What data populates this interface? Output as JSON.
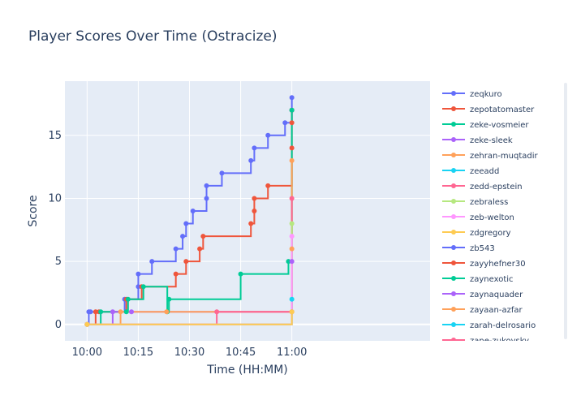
{
  "chart_data": {
    "type": "line",
    "title": "Player Scores Over Time (Ostracize)",
    "xlabel": "Time (HH:MM)",
    "ylabel": "Score",
    "x_unit": "minutes after 10:00",
    "xlim": [
      -6.5,
      100.5
    ],
    "ylim": [
      -1.3,
      19.3
    ],
    "x_ticks": [
      {
        "value": 0,
        "label": "10:00"
      },
      {
        "value": 15,
        "label": "10:15"
      },
      {
        "value": 30,
        "label": "10:30"
      },
      {
        "value": 45,
        "label": "10:45"
      },
      {
        "value": 60,
        "label": "11:00"
      }
    ],
    "y_ticks": [
      0,
      5,
      10,
      15
    ],
    "line_shape": "step-after",
    "grid": true,
    "legend_position": "right",
    "plot_background": "#e5ecf6",
    "series": [
      {
        "name": "zeqkuro",
        "color": "#636efa",
        "x": [
          0,
          0.5,
          1,
          11,
          15,
          15,
          19,
          26,
          28,
          29,
          31,
          35,
          35,
          39.5,
          48,
          49,
          53,
          58,
          60,
          60
        ],
        "y": [
          0,
          1,
          1,
          2,
          3,
          4,
          5,
          6,
          7,
          8,
          9,
          10,
          11,
          12,
          13,
          14,
          15,
          16,
          17,
          18
        ]
      },
      {
        "name": "zepotatomaster",
        "color": "#ef553b",
        "x": [
          0,
          2.5,
          3.5,
          11.5,
          16,
          26,
          29,
          33,
          34,
          48,
          49,
          49,
          53,
          60,
          60,
          60
        ],
        "y": [
          0,
          1,
          1,
          2,
          3,
          4,
          5,
          6,
          7,
          8,
          9,
          10,
          11,
          14,
          16,
          17
        ]
      },
      {
        "name": "zeke-vosmeier",
        "color": "#00cc96",
        "x": [
          0,
          4,
          11.5,
          12,
          16.5,
          23.5,
          24,
          45,
          59,
          60
        ],
        "y": [
          0,
          1,
          1,
          2,
          3,
          1,
          2,
          4,
          5,
          17
        ]
      },
      {
        "name": "zeke-sleek",
        "color": "#ab63fa",
        "x": [
          0,
          7.5,
          13,
          60,
          60
        ],
        "y": [
          0,
          1,
          1,
          1,
          5
        ]
      },
      {
        "name": "zehran-muqtadir",
        "color": "#ffa15a",
        "x": [
          0,
          9.8,
          23.3,
          60,
          60,
          60
        ],
        "y": [
          0,
          1,
          1,
          1,
          6,
          13
        ]
      },
      {
        "name": "zeeadd",
        "color": "#19d3f3",
        "x": [
          0,
          60
        ],
        "y": [
          0,
          2
        ]
      },
      {
        "name": "zedd-epstein",
        "color": "#ff6692",
        "x": [
          0,
          38,
          60
        ],
        "y": [
          0,
          1,
          10
        ]
      },
      {
        "name": "zebraless",
        "color": "#b6e880",
        "x": [
          0,
          60
        ],
        "y": [
          0,
          8
        ]
      },
      {
        "name": "zeb-welton",
        "color": "#ff97ff",
        "x": [
          0,
          60
        ],
        "y": [
          0,
          7
        ]
      },
      {
        "name": "zdgregory",
        "color": "#fecb52",
        "x": [
          0,
          60
        ],
        "y": [
          0,
          1
        ]
      },
      {
        "name": "zb543",
        "color": "#636efa",
        "x": [],
        "y": []
      },
      {
        "name": "zayyhefner30",
        "color": "#ef553b",
        "x": [],
        "y": []
      },
      {
        "name": "zaynexotic",
        "color": "#00cc96",
        "x": [],
        "y": []
      },
      {
        "name": "zaynaquader",
        "color": "#ab63fa",
        "x": [],
        "y": []
      },
      {
        "name": "zayaan-azfar",
        "color": "#ffa15a",
        "x": [],
        "y": []
      },
      {
        "name": "zarah-delrosario",
        "color": "#19d3f3",
        "x": [],
        "y": []
      },
      {
        "name": "zane-zukovsky",
        "color": "#ff6692",
        "x": [],
        "y": []
      }
    ]
  }
}
